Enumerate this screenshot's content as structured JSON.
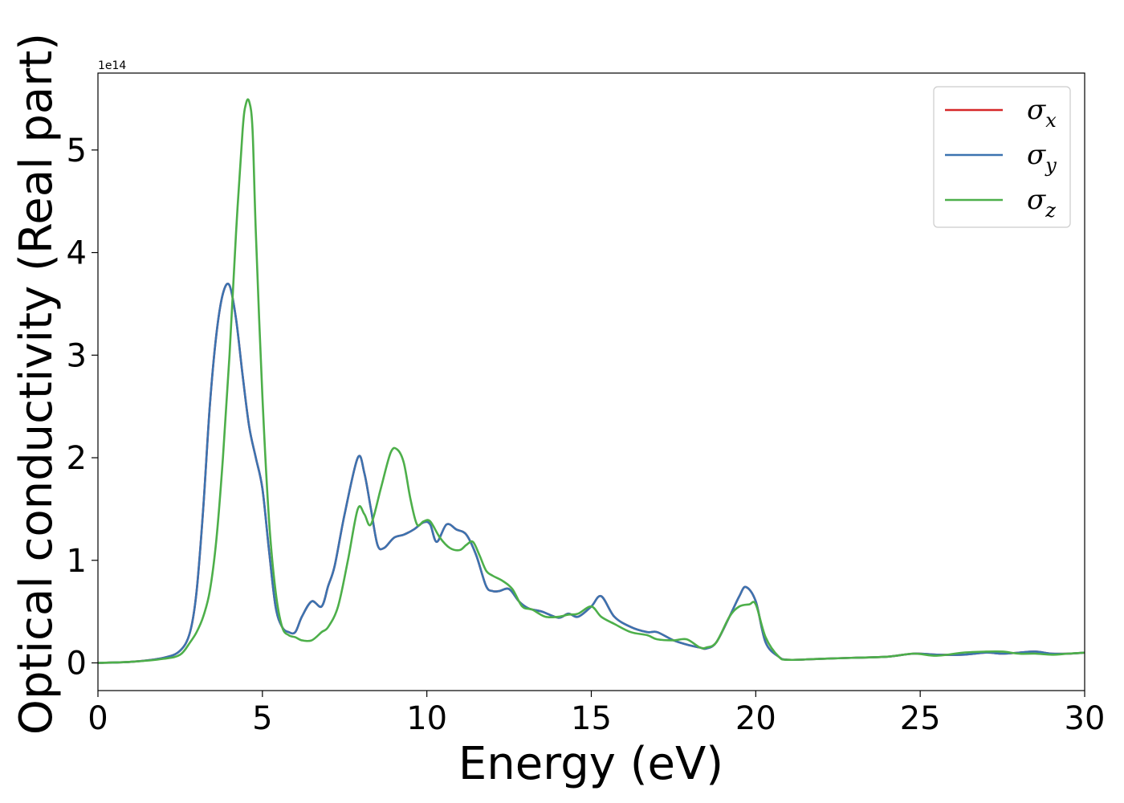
{
  "chart_data": {
    "type": "line",
    "xlabel": "Energy (eV)",
    "ylabel": "Optical conductivity (Real part)",
    "y_offset_label": "1e14",
    "xlim": [
      0,
      30
    ],
    "ylim": [
      -0.27,
      5.75
    ],
    "x_ticks": [
      "0",
      "5",
      "10",
      "15",
      "20",
      "25",
      "30"
    ],
    "y_ticks": [
      "0",
      "1",
      "2",
      "3",
      "4",
      "5"
    ],
    "grid": false,
    "legend_position": "top-right",
    "series": [
      {
        "name": "σx",
        "symbol": "σ",
        "sub": "x",
        "color": "#d62728",
        "x": [
          0,
          1,
          2,
          2.5,
          2.8,
          3.0,
          3.2,
          3.4,
          3.6,
          3.8,
          4.0,
          4.2,
          4.4,
          4.6,
          4.8,
          5.0,
          5.2,
          5.4,
          5.6,
          5.8,
          6.0,
          6.2,
          6.5,
          6.8,
          7.0,
          7.2,
          7.5,
          7.9,
          8.1,
          8.3,
          8.5,
          8.7,
          9.0,
          9.3,
          9.6,
          9.9,
          10.1,
          10.3,
          10.6,
          10.9,
          11.2,
          11.5,
          11.8,
          12.0,
          12.2,
          12.5,
          12.8,
          13.1,
          13.5,
          14.0,
          14.3,
          14.6,
          15.0,
          15.3,
          15.7,
          16.2,
          16.7,
          17.0,
          17.5,
          18.0,
          18.3,
          18.5,
          18.8,
          19.2,
          19.5,
          19.7,
          20.0,
          20.3,
          20.7,
          21.0,
          22,
          23,
          24,
          24.8,
          25.5,
          26.3,
          27.0,
          27.5,
          28.0,
          28.5,
          29.0,
          29.5,
          30
        ],
        "y": [
          0,
          0.01,
          0.05,
          0.12,
          0.3,
          0.7,
          1.5,
          2.5,
          3.2,
          3.6,
          3.68,
          3.35,
          2.8,
          2.3,
          2.0,
          1.7,
          1.1,
          0.55,
          0.35,
          0.3,
          0.3,
          0.45,
          0.6,
          0.55,
          0.75,
          0.95,
          1.45,
          2.0,
          1.85,
          1.5,
          1.15,
          1.12,
          1.22,
          1.25,
          1.3,
          1.37,
          1.35,
          1.18,
          1.35,
          1.3,
          1.25,
          1.05,
          0.75,
          0.7,
          0.7,
          0.72,
          0.6,
          0.53,
          0.5,
          0.44,
          0.48,
          0.45,
          0.55,
          0.65,
          0.45,
          0.35,
          0.3,
          0.3,
          0.22,
          0.17,
          0.15,
          0.14,
          0.2,
          0.45,
          0.65,
          0.74,
          0.6,
          0.2,
          0.06,
          0.03,
          0.04,
          0.05,
          0.06,
          0.09,
          0.08,
          0.08,
          0.1,
          0.09,
          0.1,
          0.11,
          0.09,
          0.09,
          0.1
        ]
      },
      {
        "name": "σy",
        "symbol": "σ",
        "sub": "y",
        "color": "#3b73b0",
        "x": [
          0,
          1,
          2,
          2.5,
          2.8,
          3.0,
          3.2,
          3.4,
          3.6,
          3.8,
          4.0,
          4.2,
          4.4,
          4.6,
          4.8,
          5.0,
          5.2,
          5.4,
          5.6,
          5.8,
          6.0,
          6.2,
          6.5,
          6.8,
          7.0,
          7.2,
          7.5,
          7.9,
          8.1,
          8.3,
          8.5,
          8.7,
          9.0,
          9.3,
          9.6,
          9.9,
          10.1,
          10.3,
          10.6,
          10.9,
          11.2,
          11.5,
          11.8,
          12.0,
          12.2,
          12.5,
          12.8,
          13.1,
          13.5,
          14.0,
          14.3,
          14.6,
          15.0,
          15.3,
          15.7,
          16.2,
          16.7,
          17.0,
          17.5,
          18.0,
          18.3,
          18.5,
          18.8,
          19.2,
          19.5,
          19.7,
          20.0,
          20.3,
          20.7,
          21.0,
          22,
          23,
          24,
          24.8,
          25.5,
          26.3,
          27.0,
          27.5,
          28.0,
          28.5,
          29.0,
          29.5,
          30
        ],
        "y": [
          0,
          0.01,
          0.05,
          0.12,
          0.3,
          0.7,
          1.5,
          2.5,
          3.2,
          3.6,
          3.68,
          3.35,
          2.8,
          2.3,
          2.0,
          1.7,
          1.1,
          0.55,
          0.35,
          0.3,
          0.3,
          0.45,
          0.6,
          0.55,
          0.75,
          0.95,
          1.45,
          2.0,
          1.85,
          1.5,
          1.15,
          1.12,
          1.22,
          1.25,
          1.3,
          1.37,
          1.35,
          1.18,
          1.35,
          1.3,
          1.25,
          1.05,
          0.75,
          0.7,
          0.7,
          0.72,
          0.6,
          0.53,
          0.5,
          0.44,
          0.48,
          0.45,
          0.55,
          0.65,
          0.45,
          0.35,
          0.3,
          0.3,
          0.22,
          0.17,
          0.15,
          0.14,
          0.2,
          0.45,
          0.65,
          0.74,
          0.6,
          0.2,
          0.06,
          0.03,
          0.04,
          0.05,
          0.06,
          0.09,
          0.08,
          0.08,
          0.1,
          0.09,
          0.1,
          0.11,
          0.09,
          0.09,
          0.1
        ]
      },
      {
        "name": "σz",
        "symbol": "σ",
        "sub": "z",
        "color": "#4daf4a",
        "x": [
          0,
          1,
          2,
          2.5,
          2.8,
          3.0,
          3.2,
          3.4,
          3.6,
          3.8,
          4.0,
          4.2,
          4.4,
          4.5,
          4.6,
          4.7,
          4.8,
          5.0,
          5.2,
          5.4,
          5.6,
          5.8,
          6.0,
          6.2,
          6.5,
          6.8,
          7.0,
          7.3,
          7.6,
          7.9,
          8.1,
          8.3,
          8.6,
          8.9,
          9.1,
          9.3,
          9.5,
          9.7,
          9.9,
          10.1,
          10.4,
          10.7,
          11.0,
          11.2,
          11.4,
          11.6,
          11.8,
          12.0,
          12.3,
          12.6,
          12.9,
          13.2,
          13.6,
          14.0,
          14.3,
          14.6,
          15.0,
          15.3,
          15.7,
          16.2,
          16.7,
          17.0,
          17.5,
          17.9,
          18.3,
          18.5,
          18.8,
          19.2,
          19.5,
          19.8,
          20.0,
          20.3,
          20.7,
          21.0,
          22,
          23,
          24,
          24.8,
          25.5,
          26.3,
          27.0,
          27.5,
          28.0,
          28.5,
          29.0,
          29.5,
          30
        ],
        "y": [
          0,
          0.01,
          0.04,
          0.08,
          0.2,
          0.3,
          0.45,
          0.7,
          1.2,
          2.0,
          3.0,
          4.2,
          5.2,
          5.45,
          5.47,
          5.2,
          4.2,
          2.6,
          1.4,
          0.7,
          0.35,
          0.27,
          0.25,
          0.22,
          0.22,
          0.3,
          0.35,
          0.55,
          1.0,
          1.5,
          1.45,
          1.35,
          1.7,
          2.05,
          2.08,
          1.95,
          1.6,
          1.35,
          1.38,
          1.38,
          1.22,
          1.12,
          1.1,
          1.15,
          1.18,
          1.05,
          0.9,
          0.85,
          0.8,
          0.72,
          0.55,
          0.52,
          0.45,
          0.45,
          0.47,
          0.48,
          0.55,
          0.45,
          0.38,
          0.3,
          0.27,
          0.23,
          0.22,
          0.23,
          0.15,
          0.15,
          0.2,
          0.45,
          0.55,
          0.57,
          0.57,
          0.25,
          0.06,
          0.03,
          0.04,
          0.05,
          0.06,
          0.09,
          0.07,
          0.1,
          0.11,
          0.11,
          0.09,
          0.09,
          0.08,
          0.09,
          0.1
        ]
      }
    ]
  }
}
